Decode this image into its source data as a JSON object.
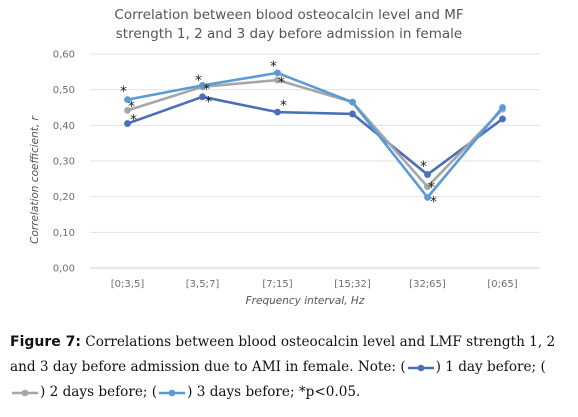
{
  "chart_data": {
    "type": "line",
    "title_lines": [
      "Correlation between blood osteocalcin level and MF",
      "strength 1, 2 and 3 day before admission in female"
    ],
    "xlabel": "Frequency interval, Hz",
    "ylabel": "Correlation coefficient, r",
    "categories": [
      "[0;3,5]",
      "[3,5;7]",
      "[7;15]",
      "[15;32]",
      "[32;65]",
      "[0;65]"
    ],
    "ylim": [
      0,
      0.6
    ],
    "yticks": [
      "0,00",
      "0,10",
      "0,20",
      "0,30",
      "0,40",
      "0,50",
      "0,60"
    ],
    "grid": true,
    "legend": "none",
    "series": [
      {
        "color": "#4a6eb8",
        "values": [
          0.405,
          0.48,
          0.437,
          0.432,
          0.262,
          0.418
        ]
      },
      {
        "color": "#a6a6a6",
        "values": [
          0.442,
          0.508,
          0.527,
          0.465,
          0.228,
          0.445
        ]
      },
      {
        "color": "#5b9bd5",
        "values": [
          0.472,
          0.512,
          0.547,
          0.465,
          0.198,
          0.45
        ]
      }
    ],
    "annotations": [
      {
        "text": "*",
        "x": "[0;3,5]",
        "y": 0.505
      },
      {
        "text": "*",
        "x": "[0;3,5]",
        "y": 0.462
      },
      {
        "text": "*",
        "x": "[0;3,5]",
        "y": 0.425
      },
      {
        "text": "*",
        "x": "[3,5;7]",
        "y": 0.535
      },
      {
        "text": "*",
        "x": "[3,5;7]",
        "y": 0.51
      },
      {
        "text": "*",
        "x": "[3,5;7]",
        "y": 0.475
      },
      {
        "text": "*",
        "x": "[7;15]",
        "y": 0.575
      },
      {
        "text": "*",
        "x": "[7;15]",
        "y": 0.53
      },
      {
        "text": "*",
        "x": "[7;15]",
        "y": 0.465
      },
      {
        "text": "*",
        "x": "[32;65]",
        "y": 0.295
      },
      {
        "text": "*",
        "x": "[32;65]",
        "y": 0.235
      },
      {
        "text": "*",
        "x": "[32;65]",
        "y": 0.195
      }
    ]
  },
  "caption": {
    "label": "Figure 7:",
    "text_1": " Correlations between blood osteocalcin level and LMF strength 1, 2 and 3 day before admission due to AMI in female. Note: (",
    "text_2": ") 1 day before; (",
    "text_3": ") 2 days before; (",
    "text_4": ") 3 days before; *p<0.05."
  }
}
